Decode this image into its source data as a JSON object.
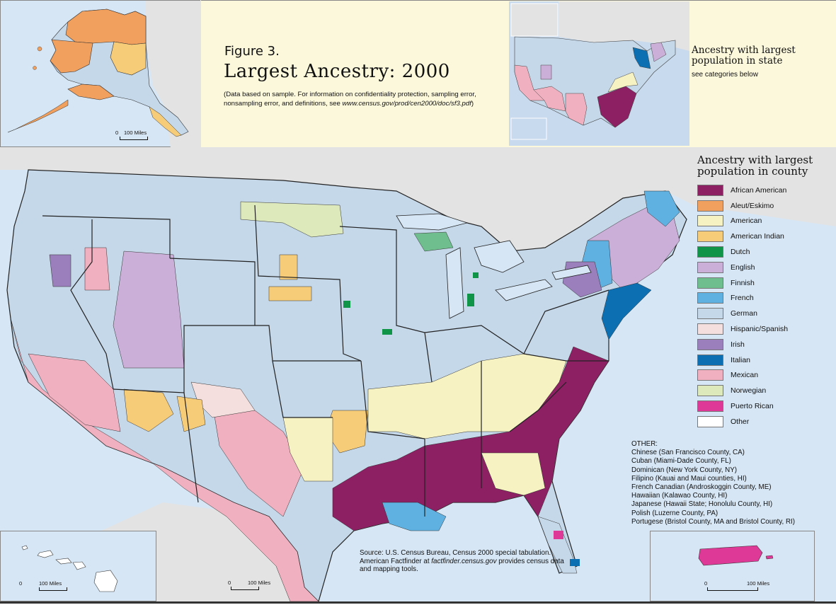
{
  "figure": {
    "label": "Figure 3.",
    "title": "Largest Ancestry: 2000",
    "note_prefix": "(Data based on sample. For information on confidentiality protection, sampling error, nonsampling error, and definitions, see ",
    "note_link": "www.census.gov/prod/cen2000/doc/sf3.pdf",
    "note_suffix": ")"
  },
  "state_inset": {
    "title": "Ancestry with largest population in state",
    "subtitle": "see categories below"
  },
  "legend": {
    "title": "Ancestry with largest population in county",
    "items": [
      {
        "label": "African American",
        "color": "#8c2063"
      },
      {
        "label": "Aleut/Eskimo",
        "color": "#f2a05e"
      },
      {
        "label": "American",
        "color": "#f6f2c2"
      },
      {
        "label": "American Indian",
        "color": "#f7cc78"
      },
      {
        "label": "Dutch",
        "color": "#109447"
      },
      {
        "label": "English",
        "color": "#cbafd8"
      },
      {
        "label": "Finnish",
        "color": "#6fbe8d"
      },
      {
        "label": "French",
        "color": "#5fb1e2"
      },
      {
        "label": "German",
        "color": "#c5d8ea"
      },
      {
        "label": "Hispanic/Spanish",
        "color": "#f4dede"
      },
      {
        "label": "Irish",
        "color": "#9a7fbc"
      },
      {
        "label": "Italian",
        "color": "#0b6fb1"
      },
      {
        "label": "Mexican",
        "color": "#f1b0bf"
      },
      {
        "label": "Norwegian",
        "color": "#dde9bb"
      },
      {
        "label": "Puerto Rican",
        "color": "#df3997"
      },
      {
        "label": "Other",
        "color": "#ffffff"
      }
    ]
  },
  "other": {
    "heading": "OTHER:",
    "items": [
      "Chinese (San Francisco County, CA)",
      "Cuban (Miami-Dade County, FL)",
      "Dominican (New York County, NY)",
      "Filipino (Kauai and Maui counties, HI)",
      "French Canadian (Androskoggin County, ME)",
      "Hawaiian (Kalawao County, HI)",
      "Japanese (Hawaii State; Honolulu County, HI)",
      "Polish (Luzerne County, PA)",
      "Portugese (Bristol County, MA and Bristol County, RI)"
    ]
  },
  "source": {
    "line1": "Source: U.S. Census Bureau, Census 2000 special tabulation. American Factfinder at",
    "link": "factfinder.census.gov",
    "line2": " provides census data and mapping tools."
  },
  "scale": {
    "zero": "0",
    "miles": "100 Miles"
  },
  "colors": {
    "water": "#d6e6f4",
    "land_outside": "#e3e3e3",
    "title_bg": "#fcf8dc",
    "border": "#222222"
  }
}
